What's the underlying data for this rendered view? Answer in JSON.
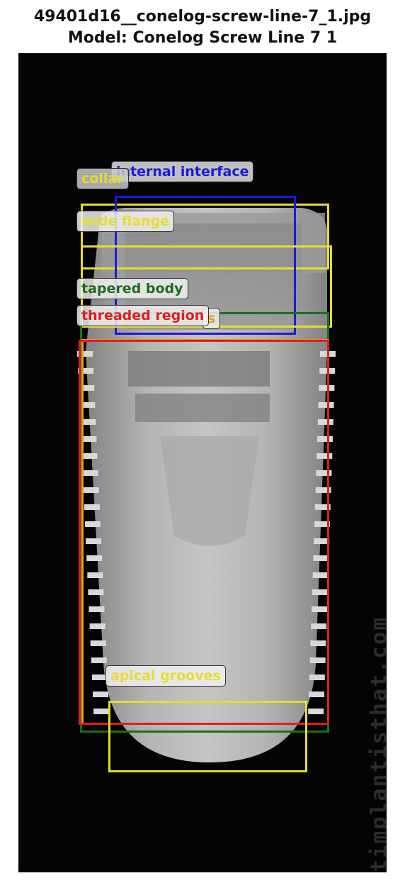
{
  "title": {
    "line1": "49401d16__conelog-screw-line-7_1.jpg",
    "line2": "Model: Conelog Screw Line 7 1"
  },
  "watermark": "whatimplantisthat.com",
  "colors": {
    "yellow": "#e6dc32",
    "blue": "#1a1adc",
    "green": "#1b6e1b",
    "red": "#e01e1e",
    "orange": "#e6a019"
  },
  "annotations": [
    {
      "id": "collar",
      "label": "collar",
      "color": "yellow"
    },
    {
      "id": "internal-interface",
      "label": "internal interface",
      "color": "blue"
    },
    {
      "id": "wide-flange",
      "label": "wide flange",
      "color": "yellow"
    },
    {
      "id": "tapered-body",
      "label": "tapered body",
      "color": "green"
    },
    {
      "id": "threaded-region",
      "label": "threaded region",
      "color": "red"
    },
    {
      "id": "hidden-label",
      "label": "s",
      "color": "orange"
    },
    {
      "id": "apical-grooves",
      "label": "apical grooves",
      "color": "yellow"
    }
  ]
}
